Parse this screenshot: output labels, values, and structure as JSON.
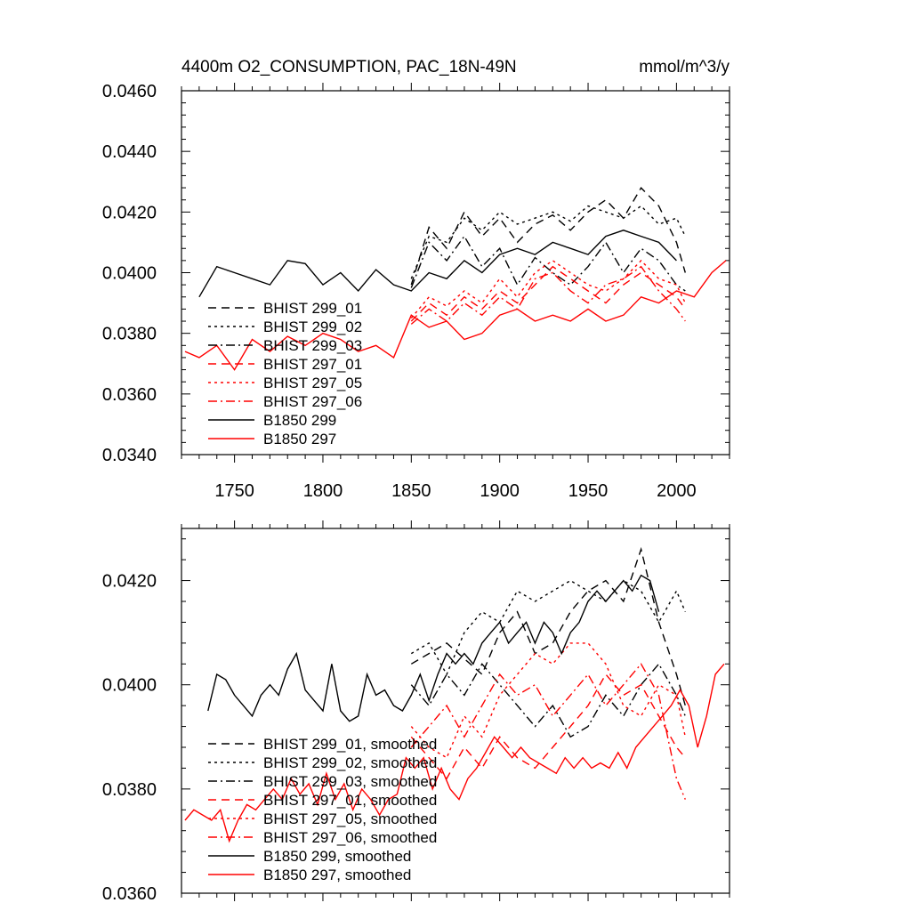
{
  "chart_data": [
    {
      "type": "line",
      "title_left": "4400m O2_CONSUMPTION, PAC_18N-49N",
      "title_right": "mmol/m^3/y",
      "xlim": [
        1720,
        2030
      ],
      "ylim": [
        0.034,
        0.046
      ],
      "xticks": [
        1750,
        1800,
        1850,
        1900,
        1950,
        2000
      ],
      "xtick_labels": [
        "1750",
        "1800",
        "1850",
        "1900",
        "1950",
        "2000"
      ],
      "yticks": [
        0.034,
        0.036,
        0.038,
        0.04,
        0.042,
        0.044,
        0.046
      ],
      "ytick_labels": [
        "0.0340",
        "0.0360",
        "0.0380",
        "0.0400",
        "0.0420",
        "0.0440",
        "0.0460"
      ],
      "grid": false,
      "legend_position": "bottom-left",
      "series": [
        {
          "name": "BHIST 299_01",
          "color": "#000000",
          "dash": "dash",
          "x": [
            1850,
            1860,
            1870,
            1880,
            1890,
            1900,
            1910,
            1920,
            1930,
            1940,
            1950,
            1960,
            1970,
            1980,
            1990,
            2000,
            2005
          ],
          "y": [
            0.0396,
            0.0415,
            0.0408,
            0.042,
            0.0412,
            0.0418,
            0.041,
            0.0416,
            0.0419,
            0.0414,
            0.042,
            0.0424,
            0.0418,
            0.0428,
            0.0422,
            0.041,
            0.04
          ]
        },
        {
          "name": "BHIST 299_02",
          "color": "#000000",
          "dash": "dot",
          "x": [
            1850,
            1860,
            1870,
            1880,
            1890,
            1900,
            1910,
            1920,
            1930,
            1940,
            1950,
            1960,
            1970,
            1980,
            1990,
            2000,
            2005
          ],
          "y": [
            0.0398,
            0.0412,
            0.041,
            0.0418,
            0.0414,
            0.042,
            0.0416,
            0.0418,
            0.042,
            0.0417,
            0.0422,
            0.042,
            0.0418,
            0.0422,
            0.0416,
            0.0418,
            0.0412
          ]
        },
        {
          "name": "BHIST 299_03",
          "color": "#000000",
          "dash": "dashdot",
          "x": [
            1850,
            1860,
            1870,
            1880,
            1890,
            1900,
            1910,
            1920,
            1930,
            1940,
            1950,
            1960,
            1970,
            1980,
            1990,
            2000,
            2005
          ],
          "y": [
            0.0395,
            0.041,
            0.0404,
            0.0412,
            0.0402,
            0.0408,
            0.0396,
            0.0405,
            0.04,
            0.0396,
            0.0402,
            0.041,
            0.04,
            0.0408,
            0.0404,
            0.0396,
            0.0394
          ]
        },
        {
          "name": "BHIST 297_01",
          "color": "#ff0000",
          "dash": "dash",
          "x": [
            1850,
            1860,
            1870,
            1880,
            1890,
            1900,
            1910,
            1920,
            1930,
            1940,
            1950,
            1960,
            1970,
            1980,
            1990,
            2000,
            2005
          ],
          "y": [
            0.0384,
            0.039,
            0.0386,
            0.0392,
            0.0388,
            0.0394,
            0.039,
            0.0396,
            0.0402,
            0.0398,
            0.0394,
            0.039,
            0.0396,
            0.04,
            0.0396,
            0.0392,
            0.0388
          ]
        },
        {
          "name": "BHIST 297_05",
          "color": "#ff0000",
          "dash": "dot",
          "x": [
            1850,
            1860,
            1870,
            1880,
            1890,
            1900,
            1910,
            1920,
            1930,
            1940,
            1950,
            1960,
            1970,
            1980,
            1990,
            2000,
            2005
          ],
          "y": [
            0.0385,
            0.0392,
            0.0389,
            0.0394,
            0.039,
            0.0398,
            0.0392,
            0.04,
            0.0404,
            0.04,
            0.0396,
            0.0394,
            0.0398,
            0.0404,
            0.0398,
            0.0396,
            0.039
          ]
        },
        {
          "name": "BHIST 297_06",
          "color": "#ff0000",
          "dash": "dashdot",
          "x": [
            1850,
            1860,
            1870,
            1880,
            1890,
            1900,
            1910,
            1920,
            1930,
            1940,
            1950,
            1960,
            1970,
            1980,
            1990,
            2000,
            2005
          ],
          "y": [
            0.0383,
            0.0388,
            0.0384,
            0.039,
            0.0386,
            0.0392,
            0.0388,
            0.0398,
            0.04,
            0.0394,
            0.039,
            0.0396,
            0.0398,
            0.0402,
            0.0394,
            0.0388,
            0.0384
          ]
        },
        {
          "name": "B1850 299",
          "color": "#000000",
          "dash": "solid",
          "x": [
            1730,
            1740,
            1750,
            1760,
            1770,
            1780,
            1790,
            1800,
            1810,
            1820,
            1830,
            1840,
            1850,
            1860,
            1870,
            1880,
            1890,
            1900,
            1910,
            1920,
            1930,
            1940,
            1950,
            1960,
            1970,
            1980,
            1990,
            2000
          ],
          "y": [
            0.0392,
            0.0402,
            0.04,
            0.0398,
            0.0396,
            0.0404,
            0.0403,
            0.0396,
            0.04,
            0.0394,
            0.0401,
            0.0396,
            0.0394,
            0.04,
            0.0398,
            0.0404,
            0.04,
            0.0406,
            0.0408,
            0.0406,
            0.041,
            0.0408,
            0.0406,
            0.0412,
            0.0414,
            0.0412,
            0.041,
            0.0404
          ]
        },
        {
          "name": "B1850 297",
          "color": "#ff0000",
          "dash": "solid",
          "x": [
            1722,
            1730,
            1740,
            1750,
            1760,
            1770,
            1780,
            1790,
            1800,
            1810,
            1820,
            1830,
            1840,
            1850,
            1860,
            1870,
            1880,
            1890,
            1900,
            1910,
            1920,
            1930,
            1940,
            1950,
            1960,
            1970,
            1980,
            1990,
            2000,
            2010,
            2020,
            2028
          ],
          "y": [
            0.0374,
            0.0372,
            0.0376,
            0.0368,
            0.0378,
            0.0374,
            0.0379,
            0.0376,
            0.038,
            0.0378,
            0.0374,
            0.0376,
            0.0372,
            0.0386,
            0.0382,
            0.0384,
            0.0378,
            0.038,
            0.0386,
            0.0388,
            0.0384,
            0.0386,
            0.0384,
            0.0388,
            0.0384,
            0.0386,
            0.0392,
            0.039,
            0.0394,
            0.0392,
            0.04,
            0.0404
          ]
        }
      ]
    },
    {
      "type": "line",
      "title_left": "",
      "title_right": "",
      "xlim": [
        1720,
        2030
      ],
      "ylim": [
        0.036,
        0.043
      ],
      "xticks": [
        1750,
        1800,
        1850,
        1900,
        1950,
        2000
      ],
      "xtick_labels": [],
      "yticks": [
        0.036,
        0.038,
        0.04,
        0.042
      ],
      "ytick_labels": [
        "0.0360",
        "0.0380",
        "0.0400",
        "0.0420"
      ],
      "grid": false,
      "legend_position": "bottom-left",
      "series": [
        {
          "name": "BHIST 299_01, smoothed",
          "color": "#000000",
          "dash": "dash",
          "x": [
            1850,
            1860,
            1870,
            1880,
            1890,
            1900,
            1910,
            1920,
            1930,
            1940,
            1950,
            1960,
            1970,
            1980,
            1990,
            2000,
            2005
          ],
          "y": [
            0.0404,
            0.0406,
            0.0408,
            0.0405,
            0.0402,
            0.041,
            0.0414,
            0.0406,
            0.0408,
            0.0414,
            0.0418,
            0.042,
            0.0416,
            0.0426,
            0.0412,
            0.0402,
            0.0396
          ]
        },
        {
          "name": "BHIST 299_02, smoothed",
          "color": "#000000",
          "dash": "dot",
          "x": [
            1850,
            1860,
            1870,
            1880,
            1890,
            1900,
            1910,
            1920,
            1930,
            1940,
            1950,
            1960,
            1970,
            1980,
            1990,
            2000,
            2005
          ],
          "y": [
            0.0406,
            0.0408,
            0.0402,
            0.041,
            0.0414,
            0.0412,
            0.0418,
            0.0416,
            0.0418,
            0.042,
            0.0418,
            0.0416,
            0.042,
            0.0418,
            0.0412,
            0.0418,
            0.0414
          ]
        },
        {
          "name": "BHIST 299_03, smoothed",
          "color": "#000000",
          "dash": "dashdot",
          "x": [
            1850,
            1860,
            1870,
            1880,
            1890,
            1900,
            1910,
            1920,
            1930,
            1940,
            1950,
            1960,
            1970,
            1980,
            1990,
            2000,
            2005
          ],
          "y": [
            0.04,
            0.0396,
            0.0402,
            0.0398,
            0.0404,
            0.04,
            0.0396,
            0.0392,
            0.0396,
            0.039,
            0.0392,
            0.0398,
            0.0394,
            0.04,
            0.0404,
            0.0398,
            0.0394
          ]
        },
        {
          "name": "BHIST 297_01, smoothed",
          "color": "#ff0000",
          "dash": "dash",
          "x": [
            1850,
            1860,
            1870,
            1880,
            1890,
            1900,
            1910,
            1920,
            1930,
            1940,
            1950,
            1960,
            1970,
            1980,
            1990,
            2000,
            2005
          ],
          "y": [
            0.039,
            0.0386,
            0.0382,
            0.0388,
            0.0384,
            0.039,
            0.0386,
            0.0384,
            0.0388,
            0.0392,
            0.0396,
            0.0402,
            0.0398,
            0.04,
            0.0394,
            0.0388,
            0.0386
          ]
        },
        {
          "name": "BHIST 297_05, smoothed",
          "color": "#ff0000",
          "dash": "dot",
          "x": [
            1850,
            1860,
            1870,
            1880,
            1890,
            1900,
            1910,
            1920,
            1930,
            1940,
            1950,
            1960,
            1970,
            1980,
            1990,
            2000,
            2005
          ],
          "y": [
            0.0392,
            0.0388,
            0.0386,
            0.0394,
            0.039,
            0.0398,
            0.0402,
            0.0406,
            0.0404,
            0.0408,
            0.0408,
            0.0404,
            0.0396,
            0.0394,
            0.04,
            0.0398,
            0.039
          ]
        },
        {
          "name": "BHIST 297_06, smoothed",
          "color": "#ff0000",
          "dash": "dashdot",
          "x": [
            1850,
            1860,
            1870,
            1880,
            1890,
            1900,
            1910,
            1920,
            1930,
            1940,
            1950,
            1960,
            1970,
            1980,
            1990,
            2000,
            2005
          ],
          "y": [
            0.0388,
            0.0392,
            0.0396,
            0.039,
            0.0396,
            0.0402,
            0.0398,
            0.04,
            0.0394,
            0.0398,
            0.0402,
            0.0396,
            0.04,
            0.0404,
            0.0398,
            0.0382,
            0.0378
          ]
        },
        {
          "name": "B1850 299, smoothed",
          "color": "#000000",
          "dash": "solid",
          "x": [
            1735,
            1740,
            1745,
            1750,
            1755,
            1760,
            1765,
            1770,
            1775,
            1780,
            1785,
            1790,
            1795,
            1800,
            1805,
            1810,
            1815,
            1820,
            1825,
            1830,
            1835,
            1840,
            1845,
            1850,
            1855,
            1860,
            1865,
            1870,
            1875,
            1880,
            1885,
            1890,
            1895,
            1900,
            1905,
            1910,
            1915,
            1920,
            1925,
            1930,
            1935,
            1940,
            1945,
            1950,
            1955,
            1960,
            1965,
            1970,
            1975,
            1980,
            1985,
            1990
          ],
          "y": [
            0.0395,
            0.0402,
            0.0401,
            0.0398,
            0.0396,
            0.0394,
            0.0398,
            0.04,
            0.0398,
            0.0403,
            0.0406,
            0.0399,
            0.0397,
            0.0395,
            0.0404,
            0.0395,
            0.0393,
            0.0394,
            0.0402,
            0.0398,
            0.0399,
            0.0396,
            0.0395,
            0.0398,
            0.0402,
            0.0397,
            0.0402,
            0.0406,
            0.0404,
            0.0406,
            0.0404,
            0.0408,
            0.041,
            0.0412,
            0.0408,
            0.041,
            0.0412,
            0.0408,
            0.0412,
            0.041,
            0.0406,
            0.041,
            0.0412,
            0.0416,
            0.0418,
            0.0416,
            0.0418,
            0.042,
            0.0418,
            0.0421,
            0.042,
            0.0414
          ]
        },
        {
          "name": "B1850 297, smoothed",
          "color": "#ff0000",
          "dash": "solid",
          "x": [
            1722,
            1727,
            1732,
            1737,
            1742,
            1747,
            1752,
            1757,
            1762,
            1767,
            1772,
            1777,
            1782,
            1787,
            1792,
            1797,
            1802,
            1807,
            1812,
            1817,
            1822,
            1827,
            1832,
            1837,
            1842,
            1847,
            1852,
            1857,
            1862,
            1867,
            1872,
            1877,
            1882,
            1887,
            1892,
            1897,
            1902,
            1907,
            1912,
            1917,
            1922,
            1927,
            1932,
            1937,
            1942,
            1947,
            1952,
            1957,
            1962,
            1967,
            1972,
            1977,
            1982,
            1987,
            1992,
            1997,
            2002,
            2007,
            2012,
            2017,
            2022,
            2027
          ],
          "y": [
            0.0374,
            0.0376,
            0.0375,
            0.0374,
            0.0376,
            0.037,
            0.0374,
            0.0377,
            0.0376,
            0.0378,
            0.038,
            0.0378,
            0.0382,
            0.0379,
            0.0381,
            0.0377,
            0.0383,
            0.0378,
            0.0381,
            0.0376,
            0.038,
            0.0378,
            0.0375,
            0.0378,
            0.0379,
            0.0386,
            0.0384,
            0.0386,
            0.038,
            0.0384,
            0.038,
            0.0378,
            0.0382,
            0.0384,
            0.0387,
            0.039,
            0.0388,
            0.0386,
            0.0388,
            0.0386,
            0.0385,
            0.0384,
            0.0383,
            0.0386,
            0.0384,
            0.0386,
            0.0384,
            0.0385,
            0.0384,
            0.0387,
            0.0384,
            0.0388,
            0.039,
            0.0392,
            0.0394,
            0.0396,
            0.0399,
            0.0396,
            0.0388,
            0.0394,
            0.0402,
            0.0404
          ]
        }
      ]
    }
  ]
}
